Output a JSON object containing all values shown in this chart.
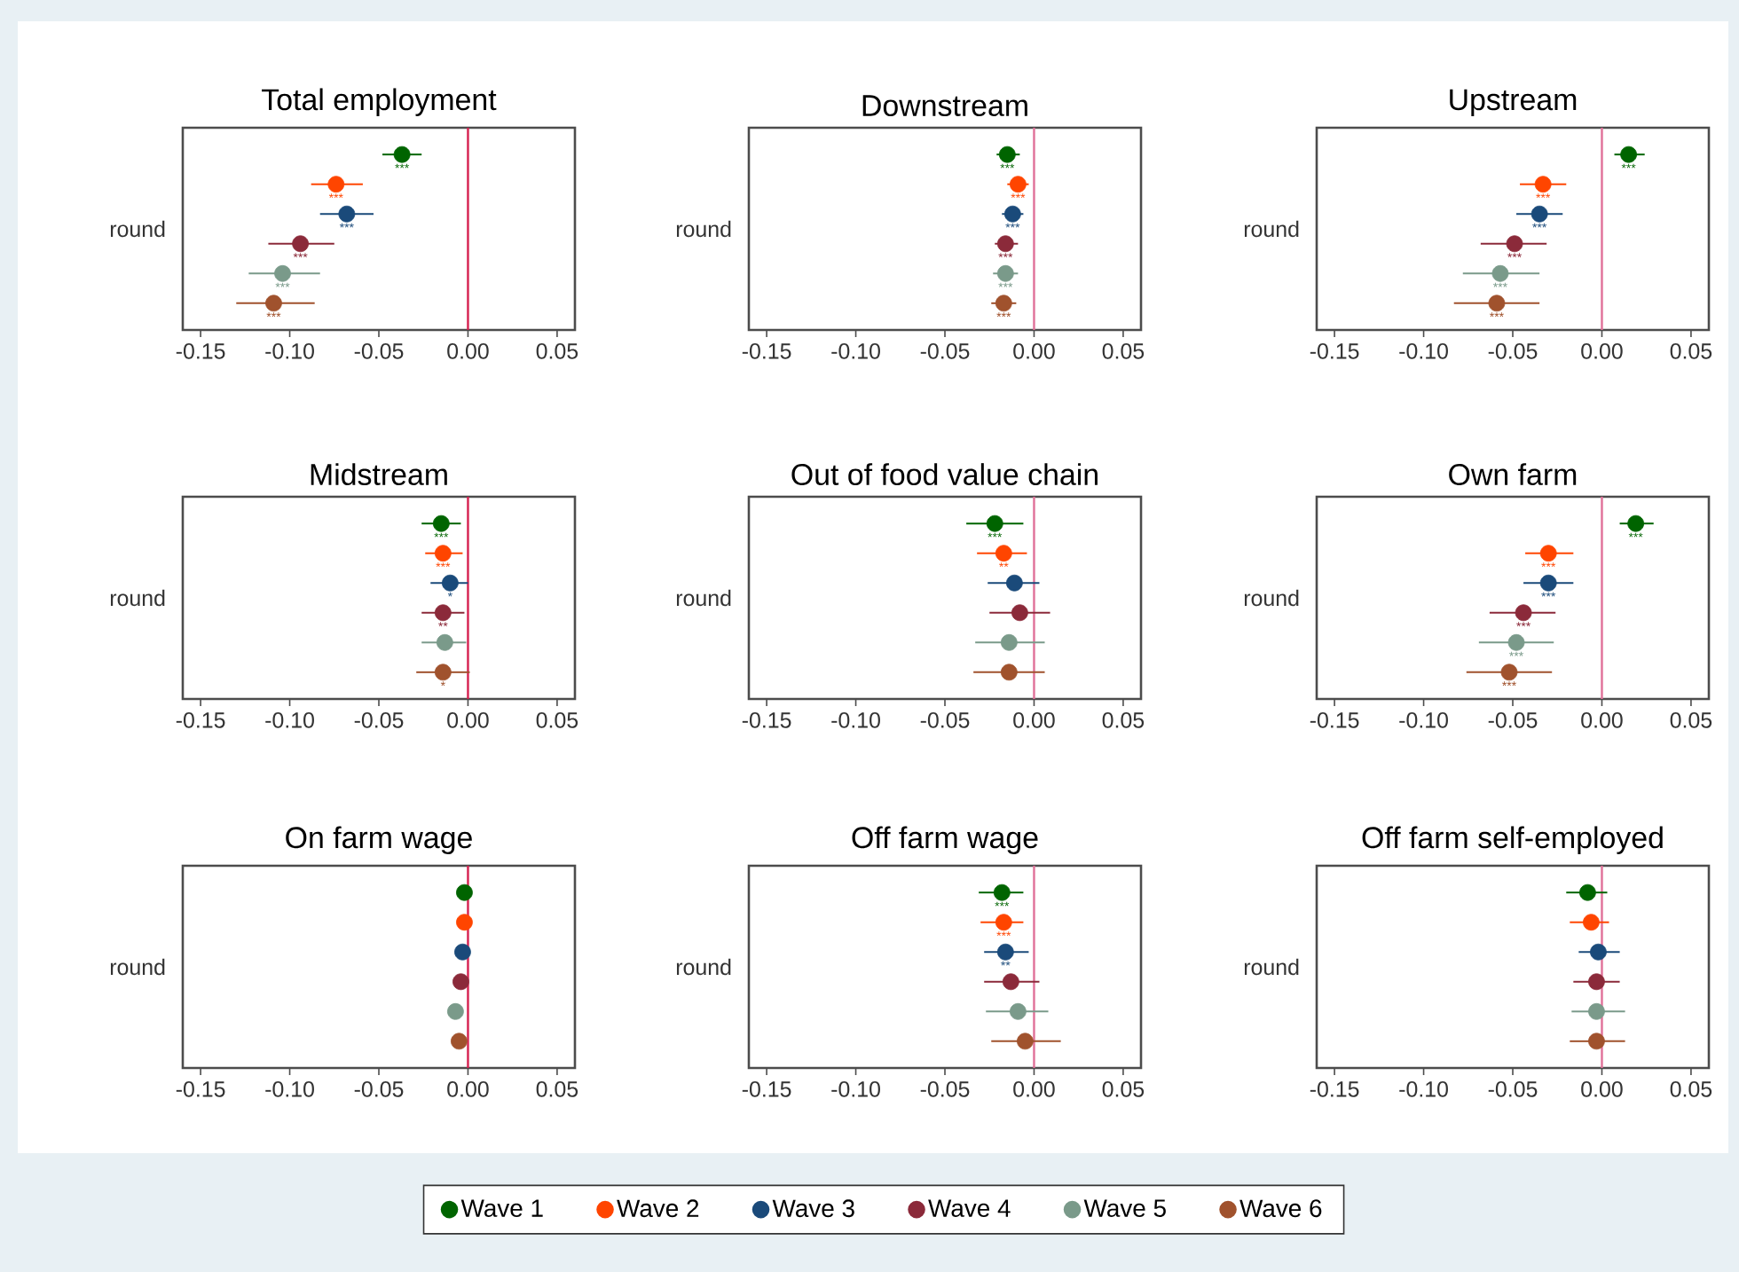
{
  "chart_data": [
    {
      "type": "scatter",
      "orientation": "horizontal",
      "title": "Total employment",
      "ylabel": "round",
      "categories": [
        null,
        null,
        null,
        null,
        null,
        null
      ],
      "xlim": [
        -0.16,
        0.06
      ],
      "xticks": [
        {
          "value": -0.15,
          "label": "-0.15"
        },
        {
          "value": -0.1,
          "label": "-0.10"
        },
        {
          "value": -0.05,
          "label": "-0.05"
        },
        {
          "value": 0,
          "label": "0.00"
        },
        {
          "value": 0.05,
          "label": "0.05"
        }
      ],
      "ref_lines": [
        {
          "axis": "x",
          "value": 0,
          "color": "#d6204f"
        }
      ],
      "series": [
        {
          "color": "#006400",
          "values": [
            -0.037,
            null,
            null,
            null,
            null,
            null
          ],
          "errors": [
            [
              -0.048,
              -0.026
            ],
            null,
            null,
            null,
            null,
            null
          ],
          "value_labels": [
            "***",
            null,
            null,
            null,
            null,
            null
          ]
        },
        {
          "color": "#ff4500",
          "values": [
            null,
            -0.074,
            null,
            null,
            null,
            null
          ],
          "errors": [
            null,
            [
              -0.088,
              -0.059
            ],
            null,
            null,
            null,
            null
          ],
          "value_labels": [
            null,
            "***",
            null,
            null,
            null,
            null
          ]
        },
        {
          "color": "#1a4a7a",
          "values": [
            null,
            null,
            -0.068,
            null,
            null,
            null
          ],
          "errors": [
            null,
            null,
            [
              -0.083,
              -0.053
            ],
            null,
            null,
            null
          ],
          "value_labels": [
            null,
            null,
            "***",
            null,
            null,
            null
          ]
        },
        {
          "color": "#8b2a3a",
          "values": [
            null,
            null,
            null,
            -0.094,
            null,
            null
          ],
          "errors": [
            null,
            null,
            null,
            [
              -0.112,
              -0.075
            ],
            null,
            null
          ],
          "value_labels": [
            null,
            null,
            null,
            "***",
            null,
            null
          ]
        },
        {
          "color": "#7a9a8a",
          "values": [
            null,
            null,
            null,
            null,
            -0.104,
            null
          ],
          "errors": [
            null,
            null,
            null,
            null,
            [
              -0.123,
              -0.083
            ],
            null
          ],
          "value_labels": [
            null,
            null,
            null,
            null,
            "***",
            null
          ]
        },
        {
          "color": "#a0522d",
          "values": [
            null,
            null,
            null,
            null,
            null,
            -0.109
          ],
          "errors": [
            null,
            null,
            null,
            null,
            null,
            [
              -0.13,
              -0.086
            ]
          ],
          "value_labels": [
            null,
            null,
            null,
            null,
            null,
            "***"
          ]
        }
      ]
    },
    {
      "type": "scatter",
      "orientation": "horizontal",
      "title": "Downstream",
      "ylabel": "round",
      "categories": [
        null,
        null,
        null,
        null,
        null,
        null
      ],
      "xlim": [
        -0.16,
        0.06
      ],
      "xticks": [
        {
          "value": -0.15,
          "label": "-0.15"
        },
        {
          "value": -0.1,
          "label": "-0.10"
        },
        {
          "value": -0.05,
          "label": "-0.05"
        },
        {
          "value": 0,
          "label": "0.00"
        },
        {
          "value": 0.05,
          "label": "0.05"
        }
      ],
      "ref_lines": [
        {
          "axis": "x",
          "value": 0,
          "color": "#e07098"
        }
      ],
      "series": [
        {
          "color": "#006400",
          "values": [
            -0.015,
            null,
            null,
            null,
            null,
            null
          ],
          "errors": [
            [
              -0.021,
              -0.008
            ],
            null,
            null,
            null,
            null,
            null
          ],
          "value_labels": [
            "***",
            null,
            null,
            null,
            null,
            null
          ]
        },
        {
          "color": "#ff4500",
          "values": [
            null,
            -0.009,
            null,
            null,
            null,
            null
          ],
          "errors": [
            null,
            [
              -0.015,
              -0.003
            ],
            null,
            null,
            null,
            null
          ],
          "value_labels": [
            null,
            "***",
            null,
            null,
            null,
            null
          ]
        },
        {
          "color": "#1a4a7a",
          "values": [
            null,
            null,
            -0.012,
            null,
            null,
            null
          ],
          "errors": [
            null,
            null,
            [
              -0.018,
              -0.006
            ],
            null,
            null,
            null
          ],
          "value_labels": [
            null,
            null,
            "***",
            null,
            null,
            null
          ]
        },
        {
          "color": "#8b2a3a",
          "values": [
            null,
            null,
            null,
            -0.016,
            null,
            null
          ],
          "errors": [
            null,
            null,
            null,
            [
              -0.022,
              -0.009
            ],
            null,
            null
          ],
          "value_labels": [
            null,
            null,
            null,
            "***",
            null,
            null
          ]
        },
        {
          "color": "#7a9a8a",
          "values": [
            null,
            null,
            null,
            null,
            -0.016,
            null
          ],
          "errors": [
            null,
            null,
            null,
            null,
            [
              -0.023,
              -0.009
            ],
            null
          ],
          "value_labels": [
            null,
            null,
            null,
            null,
            "***",
            null
          ]
        },
        {
          "color": "#a0522d",
          "values": [
            null,
            null,
            null,
            null,
            null,
            -0.017
          ],
          "errors": [
            null,
            null,
            null,
            null,
            null,
            [
              -0.024,
              -0.01
            ]
          ],
          "value_labels": [
            null,
            null,
            null,
            null,
            null,
            "***"
          ]
        }
      ]
    },
    {
      "type": "scatter",
      "orientation": "horizontal",
      "title": "Upstream",
      "ylabel": "round",
      "categories": [
        null,
        null,
        null,
        null,
        null,
        null
      ],
      "xlim": [
        -0.16,
        0.06
      ],
      "xticks": [
        {
          "value": -0.15,
          "label": "-0.15"
        },
        {
          "value": -0.1,
          "label": "-0.10"
        },
        {
          "value": -0.05,
          "label": "-0.05"
        },
        {
          "value": 0,
          "label": "0.00"
        },
        {
          "value": 0.05,
          "label": "0.05"
        }
      ],
      "ref_lines": [
        {
          "axis": "x",
          "value": 0,
          "color": "#e07098"
        }
      ],
      "series": [
        {
          "color": "#006400",
          "values": [
            0.015,
            null,
            null,
            null,
            null,
            null
          ],
          "errors": [
            [
              0.007,
              0.024
            ],
            null,
            null,
            null,
            null,
            null
          ],
          "value_labels": [
            "***",
            null,
            null,
            null,
            null,
            null
          ]
        },
        {
          "color": "#ff4500",
          "values": [
            null,
            -0.033,
            null,
            null,
            null,
            null
          ],
          "errors": [
            null,
            [
              -0.046,
              -0.02
            ],
            null,
            null,
            null,
            null
          ],
          "value_labels": [
            null,
            "***",
            null,
            null,
            null,
            null
          ]
        },
        {
          "color": "#1a4a7a",
          "values": [
            null,
            null,
            -0.035,
            null,
            null,
            null
          ],
          "errors": [
            null,
            null,
            [
              -0.048,
              -0.022
            ],
            null,
            null,
            null
          ],
          "value_labels": [
            null,
            null,
            "***",
            null,
            null,
            null
          ]
        },
        {
          "color": "#8b2a3a",
          "values": [
            null,
            null,
            null,
            -0.049,
            null,
            null
          ],
          "errors": [
            null,
            null,
            null,
            [
              -0.068,
              -0.031
            ],
            null,
            null
          ],
          "value_labels": [
            null,
            null,
            null,
            "***",
            null,
            null
          ]
        },
        {
          "color": "#7a9a8a",
          "values": [
            null,
            null,
            null,
            null,
            -0.057,
            null
          ],
          "errors": [
            null,
            null,
            null,
            null,
            [
              -0.078,
              -0.035
            ],
            null
          ],
          "value_labels": [
            null,
            null,
            null,
            null,
            "***",
            null
          ]
        },
        {
          "color": "#a0522d",
          "values": [
            null,
            null,
            null,
            null,
            null,
            -0.059
          ],
          "errors": [
            null,
            null,
            null,
            null,
            null,
            [
              -0.083,
              -0.035
            ]
          ],
          "value_labels": [
            null,
            null,
            null,
            null,
            null,
            "***"
          ]
        }
      ]
    },
    {
      "type": "scatter",
      "orientation": "horizontal",
      "title": "Midstream",
      "ylabel": "round",
      "categories": [
        null,
        null,
        null,
        null,
        null,
        null
      ],
      "xlim": [
        -0.16,
        0.06
      ],
      "xticks": [
        {
          "value": -0.15,
          "label": "-0.15"
        },
        {
          "value": -0.1,
          "label": "-0.10"
        },
        {
          "value": -0.05,
          "label": "-0.05"
        },
        {
          "value": 0,
          "label": "0.00"
        },
        {
          "value": 0.05,
          "label": "0.05"
        }
      ],
      "ref_lines": [
        {
          "axis": "x",
          "value": 0,
          "color": "#d6204f"
        }
      ],
      "series": [
        {
          "color": "#006400",
          "values": [
            -0.015,
            null,
            null,
            null,
            null,
            null
          ],
          "errors": [
            [
              -0.026,
              -0.004
            ],
            null,
            null,
            null,
            null,
            null
          ],
          "value_labels": [
            "***",
            null,
            null,
            null,
            null,
            null
          ]
        },
        {
          "color": "#ff4500",
          "values": [
            null,
            -0.014,
            null,
            null,
            null,
            null
          ],
          "errors": [
            null,
            [
              -0.024,
              -0.003
            ],
            null,
            null,
            null,
            null
          ],
          "value_labels": [
            null,
            "***",
            null,
            null,
            null,
            null
          ]
        },
        {
          "color": "#1a4a7a",
          "values": [
            null,
            null,
            -0.01,
            null,
            null,
            null
          ],
          "errors": [
            null,
            null,
            [
              -0.021,
              0.0
            ],
            null,
            null,
            null
          ],
          "value_labels": [
            null,
            null,
            "*",
            null,
            null,
            null
          ]
        },
        {
          "color": "#8b2a3a",
          "values": [
            null,
            null,
            null,
            -0.014,
            null,
            null
          ],
          "errors": [
            null,
            null,
            null,
            [
              -0.026,
              -0.002
            ],
            null,
            null
          ],
          "value_labels": [
            null,
            null,
            null,
            "**",
            null,
            null
          ]
        },
        {
          "color": "#7a9a8a",
          "values": [
            null,
            null,
            null,
            null,
            -0.013,
            null
          ],
          "errors": [
            null,
            null,
            null,
            null,
            [
              -0.026,
              -0.001
            ],
            null
          ]
        },
        {
          "color": "#a0522d",
          "values": [
            null,
            null,
            null,
            null,
            null,
            -0.014
          ],
          "errors": [
            null,
            null,
            null,
            null,
            null,
            [
              -0.029,
              0.001
            ]
          ],
          "value_labels": [
            null,
            null,
            null,
            null,
            null,
            "*"
          ]
        }
      ]
    },
    {
      "type": "scatter",
      "orientation": "horizontal",
      "title": "Out of food value chain",
      "ylabel": "round",
      "categories": [
        null,
        null,
        null,
        null,
        null,
        null
      ],
      "xlim": [
        -0.16,
        0.06
      ],
      "xticks": [
        {
          "value": -0.15,
          "label": "-0.15"
        },
        {
          "value": -0.1,
          "label": "-0.10"
        },
        {
          "value": -0.05,
          "label": "-0.05"
        },
        {
          "value": 0,
          "label": "0.00"
        },
        {
          "value": 0.05,
          "label": "0.05"
        }
      ],
      "ref_lines": [
        {
          "axis": "x",
          "value": 0,
          "color": "#e07098"
        }
      ],
      "series": [
        {
          "color": "#006400",
          "values": [
            -0.022,
            null,
            null,
            null,
            null,
            null
          ],
          "errors": [
            [
              -0.038,
              -0.006
            ],
            null,
            null,
            null,
            null,
            null
          ],
          "value_labels": [
            "***",
            null,
            null,
            null,
            null,
            null
          ]
        },
        {
          "color": "#ff4500",
          "values": [
            null,
            -0.017,
            null,
            null,
            null,
            null
          ],
          "errors": [
            null,
            [
              -0.032,
              -0.004
            ],
            null,
            null,
            null,
            null
          ],
          "value_labels": [
            null,
            "**",
            null,
            null,
            null,
            null
          ]
        },
        {
          "color": "#1a4a7a",
          "values": [
            null,
            null,
            -0.011,
            null,
            null,
            null
          ],
          "errors": [
            null,
            null,
            [
              -0.026,
              0.003
            ],
            null,
            null,
            null
          ]
        },
        {
          "color": "#8b2a3a",
          "values": [
            null,
            null,
            null,
            -0.008,
            null,
            null
          ],
          "errors": [
            null,
            null,
            null,
            [
              -0.025,
              0.009
            ],
            null,
            null
          ]
        },
        {
          "color": "#7a9a8a",
          "values": [
            null,
            null,
            null,
            null,
            -0.014,
            null
          ],
          "errors": [
            null,
            null,
            null,
            null,
            [
              -0.033,
              0.006
            ],
            null
          ]
        },
        {
          "color": "#a0522d",
          "values": [
            null,
            null,
            null,
            null,
            null,
            -0.014
          ],
          "errors": [
            null,
            null,
            null,
            null,
            null,
            [
              -0.034,
              0.006
            ]
          ]
        }
      ]
    },
    {
      "type": "scatter",
      "orientation": "horizontal",
      "title": "Own farm",
      "ylabel": "round",
      "categories": [
        null,
        null,
        null,
        null,
        null,
        null
      ],
      "xlim": [
        -0.16,
        0.06
      ],
      "xticks": [
        {
          "value": -0.15,
          "label": "-0.15"
        },
        {
          "value": -0.1,
          "label": "-0.10"
        },
        {
          "value": -0.05,
          "label": "-0.05"
        },
        {
          "value": 0,
          "label": "0.00"
        },
        {
          "value": 0.05,
          "label": "0.05"
        }
      ],
      "ref_lines": [
        {
          "axis": "x",
          "value": 0,
          "color": "#e07098"
        }
      ],
      "series": [
        {
          "color": "#006400",
          "values": [
            0.019,
            null,
            null,
            null,
            null,
            null
          ],
          "errors": [
            [
              0.01,
              0.029
            ],
            null,
            null,
            null,
            null,
            null
          ],
          "value_labels": [
            "***",
            null,
            null,
            null,
            null,
            null
          ]
        },
        {
          "color": "#ff4500",
          "values": [
            null,
            -0.03,
            null,
            null,
            null,
            null
          ],
          "errors": [
            null,
            [
              -0.043,
              -0.016
            ],
            null,
            null,
            null,
            null
          ],
          "value_labels": [
            null,
            "***",
            null,
            null,
            null,
            null
          ]
        },
        {
          "color": "#1a4a7a",
          "values": [
            null,
            null,
            -0.03,
            null,
            null,
            null
          ],
          "errors": [
            null,
            null,
            [
              -0.044,
              -0.016
            ],
            null,
            null,
            null
          ],
          "value_labels": [
            null,
            null,
            "***",
            null,
            null,
            null
          ]
        },
        {
          "color": "#8b2a3a",
          "values": [
            null,
            null,
            null,
            -0.044,
            null,
            null
          ],
          "errors": [
            null,
            null,
            null,
            [
              -0.063,
              -0.026
            ],
            null,
            null
          ],
          "value_labels": [
            null,
            null,
            null,
            "***",
            null,
            null
          ]
        },
        {
          "color": "#7a9a8a",
          "values": [
            null,
            null,
            null,
            null,
            -0.048,
            null
          ],
          "errors": [
            null,
            null,
            null,
            null,
            [
              -0.069,
              -0.027
            ],
            null
          ],
          "value_labels": [
            null,
            null,
            null,
            null,
            "***",
            null
          ]
        },
        {
          "color": "#a0522d",
          "values": [
            null,
            null,
            null,
            null,
            null,
            -0.052
          ],
          "errors": [
            null,
            null,
            null,
            null,
            null,
            [
              -0.076,
              -0.028
            ]
          ],
          "value_labels": [
            null,
            null,
            null,
            null,
            null,
            "***"
          ]
        }
      ]
    },
    {
      "type": "scatter",
      "orientation": "horizontal",
      "title": "On farm wage",
      "ylabel": "round",
      "categories": [
        null,
        null,
        null,
        null,
        null,
        null
      ],
      "xlim": [
        -0.16,
        0.06
      ],
      "xticks": [
        {
          "value": -0.15,
          "label": "-0.15"
        },
        {
          "value": -0.1,
          "label": "-0.10"
        },
        {
          "value": -0.05,
          "label": "-0.05"
        },
        {
          "value": 0,
          "label": "0.00"
        },
        {
          "value": 0.05,
          "label": "0.05"
        }
      ],
      "ref_lines": [
        {
          "axis": "x",
          "value": 0,
          "color": "#d6204f"
        }
      ],
      "series": [
        {
          "color": "#006400",
          "values": [
            -0.002,
            null,
            null,
            null,
            null,
            null
          ]
        },
        {
          "color": "#ff4500",
          "values": [
            null,
            -0.002,
            null,
            null,
            null,
            null
          ]
        },
        {
          "color": "#1a4a7a",
          "values": [
            null,
            null,
            -0.003,
            null,
            null,
            null
          ]
        },
        {
          "color": "#8b2a3a",
          "values": [
            null,
            null,
            null,
            -0.004,
            null,
            null
          ]
        },
        {
          "color": "#7a9a8a",
          "values": [
            null,
            null,
            null,
            null,
            -0.007,
            null
          ]
        },
        {
          "color": "#a0522d",
          "values": [
            null,
            null,
            null,
            null,
            null,
            -0.005
          ]
        }
      ]
    },
    {
      "type": "scatter",
      "orientation": "horizontal",
      "title": "Off farm wage",
      "ylabel": "round",
      "categories": [
        null,
        null,
        null,
        null,
        null,
        null
      ],
      "xlim": [
        -0.16,
        0.06
      ],
      "xticks": [
        {
          "value": -0.15,
          "label": "-0.15"
        },
        {
          "value": -0.1,
          "label": "-0.10"
        },
        {
          "value": -0.05,
          "label": "-0.05"
        },
        {
          "value": 0,
          "label": "0.00"
        },
        {
          "value": 0.05,
          "label": "0.05"
        }
      ],
      "legend": "bottom",
      "ref_lines": [
        {
          "axis": "x",
          "value": 0,
          "color": "#e07098"
        }
      ],
      "series": [
        {
          "name": "Wave 1",
          "color": "#006400",
          "values": [
            -0.018,
            null,
            null,
            null,
            null,
            null
          ],
          "errors": [
            [
              -0.031,
              -0.006
            ],
            null,
            null,
            null,
            null,
            null
          ],
          "value_labels": [
            "***",
            null,
            null,
            null,
            null,
            null
          ]
        },
        {
          "name": "Wave 2",
          "color": "#ff4500",
          "values": [
            null,
            -0.017,
            null,
            null,
            null,
            null
          ],
          "errors": [
            null,
            [
              -0.03,
              -0.006
            ],
            null,
            null,
            null,
            null
          ],
          "value_labels": [
            null,
            "***",
            null,
            null,
            null,
            null
          ]
        },
        {
          "name": "Wave 3",
          "color": "#1a4a7a",
          "values": [
            null,
            null,
            -0.016,
            null,
            null,
            null
          ],
          "errors": [
            null,
            null,
            [
              -0.028,
              -0.003
            ],
            null,
            null,
            null
          ],
          "value_labels": [
            null,
            null,
            "**",
            null,
            null,
            null
          ]
        },
        {
          "name": "Wave 4",
          "color": "#8b2a3a",
          "values": [
            null,
            null,
            null,
            -0.013,
            null,
            null
          ],
          "errors": [
            null,
            null,
            null,
            [
              -0.028,
              0.003
            ],
            null,
            null
          ]
        },
        {
          "name": "Wave 5",
          "color": "#7a9a8a",
          "values": [
            null,
            null,
            null,
            null,
            -0.009,
            null
          ],
          "errors": [
            null,
            null,
            null,
            null,
            [
              -0.027,
              0.008
            ],
            null
          ]
        },
        {
          "name": "Wave 6",
          "color": "#a0522d",
          "values": [
            null,
            null,
            null,
            null,
            null,
            -0.005
          ],
          "errors": [
            null,
            null,
            null,
            null,
            null,
            [
              -0.024,
              0.015
            ]
          ]
        }
      ]
    },
    {
      "type": "scatter",
      "orientation": "horizontal",
      "title": "Off farm self-employed",
      "ylabel": "round",
      "categories": [
        null,
        null,
        null,
        null,
        null,
        null
      ],
      "xlim": [
        -0.16,
        0.06
      ],
      "xticks": [
        {
          "value": -0.15,
          "label": "-0.15"
        },
        {
          "value": -0.1,
          "label": "-0.10"
        },
        {
          "value": -0.05,
          "label": "-0.05"
        },
        {
          "value": 0,
          "label": "0.00"
        },
        {
          "value": 0.05,
          "label": "0.05"
        }
      ],
      "ref_lines": [
        {
          "axis": "x",
          "value": 0,
          "color": "#e07098"
        }
      ],
      "series": [
        {
          "color": "#006400",
          "values": [
            -0.008,
            null,
            null,
            null,
            null,
            null
          ],
          "errors": [
            [
              -0.02,
              0.003
            ],
            null,
            null,
            null,
            null,
            null
          ]
        },
        {
          "color": "#ff4500",
          "values": [
            null,
            -0.006,
            null,
            null,
            null,
            null
          ],
          "errors": [
            null,
            [
              -0.018,
              0.004
            ],
            null,
            null,
            null,
            null
          ]
        },
        {
          "color": "#1a4a7a",
          "values": [
            null,
            null,
            -0.002,
            null,
            null,
            null
          ],
          "errors": [
            null,
            null,
            [
              -0.013,
              0.01
            ],
            null,
            null,
            null
          ]
        },
        {
          "color": "#8b2a3a",
          "values": [
            null,
            null,
            null,
            -0.003,
            null,
            null
          ],
          "errors": [
            null,
            null,
            null,
            [
              -0.016,
              0.01
            ],
            null,
            null
          ]
        },
        {
          "color": "#7a9a8a",
          "values": [
            null,
            null,
            null,
            null,
            -0.003,
            null
          ],
          "errors": [
            null,
            null,
            null,
            null,
            [
              -0.017,
              0.013
            ],
            null
          ]
        },
        {
          "color": "#a0522d",
          "values": [
            null,
            null,
            null,
            null,
            null,
            -0.003
          ],
          "errors": [
            null,
            null,
            null,
            null,
            null,
            [
              -0.018,
              0.013
            ]
          ]
        }
      ]
    }
  ]
}
